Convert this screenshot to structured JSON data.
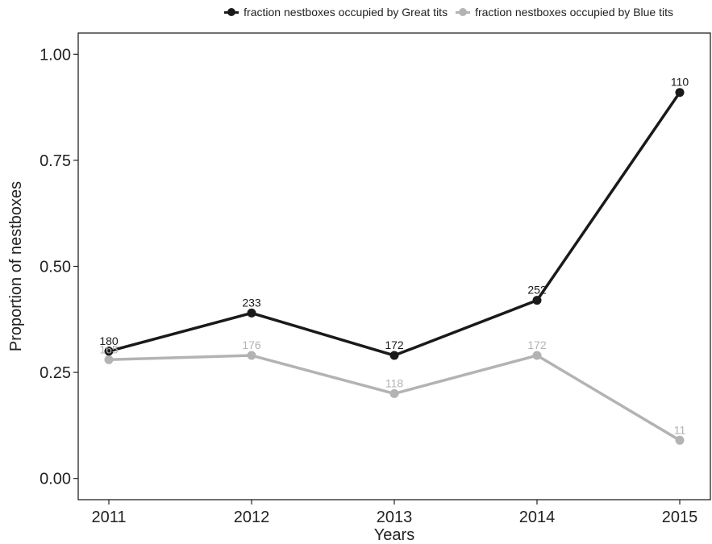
{
  "chart_data": {
    "type": "line",
    "title": "",
    "xlabel": "Years",
    "ylabel": "Proportion of nestboxes",
    "x": [
      "2011",
      "2012",
      "2013",
      "2014",
      "2015"
    ],
    "ylim": [
      -0.05,
      1.05
    ],
    "yticks": [
      "0.00",
      "0.25",
      "0.50",
      "0.75",
      "1.00"
    ],
    "ytick_values": [
      0,
      0.25,
      0.5,
      0.75,
      1.0
    ],
    "grid": false,
    "legend_position": "top",
    "series": [
      {
        "name": "fraction nestboxes occupied by Great tits",
        "values": [
          0.3,
          0.39,
          0.29,
          0.42,
          0.91
        ],
        "labels": [
          "180",
          "233",
          "172",
          "252",
          "110"
        ],
        "color": "#1a1a1a"
      },
      {
        "name": "fraction nestboxes occupied by Blue tits",
        "values": [
          0.28,
          0.29,
          0.2,
          0.29,
          0.09
        ],
        "labels": [
          "165",
          "176",
          "118",
          "172",
          "11"
        ],
        "color": "#b3b3b3"
      }
    ]
  }
}
